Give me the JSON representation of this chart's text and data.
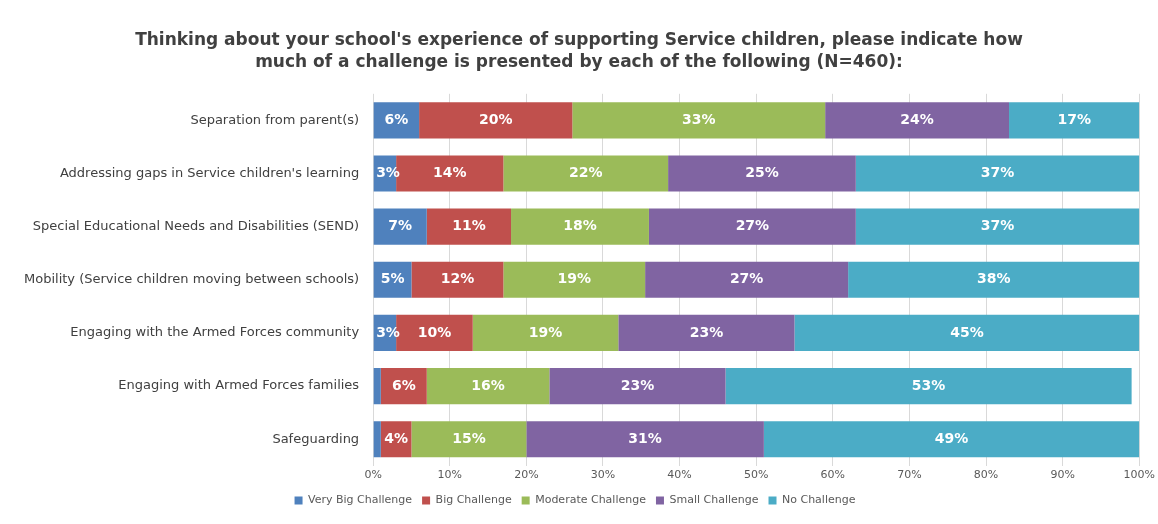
{
  "chart_data": {
    "type": "bar",
    "orientation": "horizontal",
    "stacked": true,
    "title": "Thinking about your school's experience of supporting Service children, please indicate how much of a challenge is presented by each of the following (N=460):",
    "categories": [
      "Separation from parent(s)",
      "Addressing gaps in Service children's learning",
      "Special Educational Needs and Disabilities (SEND)",
      "Mobility (Service children moving between schools)",
      "Engaging with the Armed Forces community",
      "Engaging with Armed Forces families",
      "Safeguarding"
    ],
    "series": [
      {
        "name": "Very Big Challenge",
        "color": "#4f81bd",
        "values": [
          6,
          3,
          7,
          5,
          3,
          1,
          1
        ],
        "value_labels": [
          "6%",
          "3%",
          "7%",
          "5%",
          "3%",
          null,
          null
        ]
      },
      {
        "name": "Big Challenge",
        "color": "#c0504d",
        "values": [
          20,
          14,
          11,
          12,
          10,
          6,
          4
        ],
        "value_labels": [
          "20%",
          "14%",
          "11%",
          "12%",
          "10%",
          "6%",
          "4%"
        ]
      },
      {
        "name": "Moderate Challenge",
        "color": "#9bbb59",
        "values": [
          33,
          21.5,
          18,
          18.5,
          19,
          16,
          15
        ],
        "value_labels": [
          "33%",
          "22%",
          "18%",
          "19%",
          "19%",
          "16%",
          "15%"
        ]
      },
      {
        "name": "Small Challenge",
        "color": "#8064a2",
        "values": [
          24,
          24.5,
          27,
          26.5,
          23,
          23,
          31
        ],
        "value_labels": [
          "24%",
          "25%",
          "27%",
          "27%",
          "23%",
          "23%",
          "31%"
        ]
      },
      {
        "name": "No Challenge",
        "color": "#4bacc6",
        "values": [
          17,
          37,
          37,
          38,
          45,
          53,
          49
        ],
        "value_labels": [
          "17%",
          "37%",
          "37%",
          "38%",
          "45%",
          "53%",
          "49%"
        ]
      }
    ],
    "xlim": [
      0,
      100
    ],
    "xticks": [
      {
        "value": 0,
        "label": "0%"
      },
      {
        "value": 10,
        "label": "10%"
      },
      {
        "value": 20,
        "label": "20%"
      },
      {
        "value": 30,
        "label": "30%"
      },
      {
        "value": 40,
        "label": "40%"
      },
      {
        "value": 50,
        "label": "50%"
      },
      {
        "value": 60,
        "label": "60%"
      },
      {
        "value": 70,
        "label": "70%"
      },
      {
        "value": 80,
        "label": "80%"
      },
      {
        "value": 90,
        "label": "90%"
      },
      {
        "value": 100,
        "label": "100%"
      }
    ],
    "grid": "x",
    "legend": "bottom"
  }
}
